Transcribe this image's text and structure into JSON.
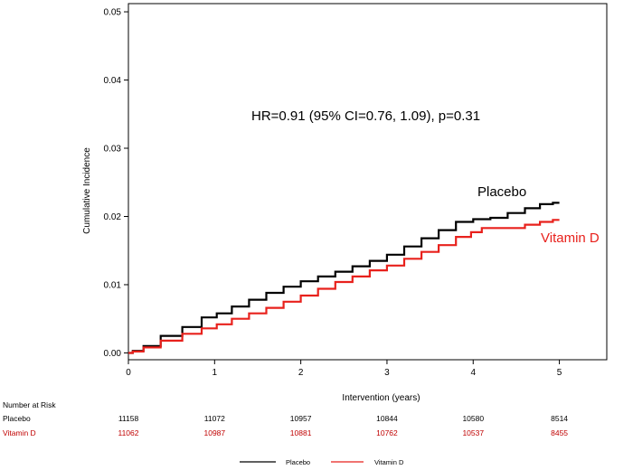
{
  "chart_data": {
    "type": "line",
    "title": "",
    "xlabel": "Intervention (years)",
    "ylabel": "Cumulative Incidence",
    "xlim": [
      0,
      5.55
    ],
    "ylim": [
      -0.001,
      0.0512
    ],
    "x_ticks": [
      0,
      1,
      2,
      3,
      4,
      5
    ],
    "x_tick_labels": [
      "0",
      "1",
      "2",
      "3",
      "4",
      "5"
    ],
    "y_ticks": [
      0,
      0.01,
      0.02,
      0.03,
      0.04,
      0.05
    ],
    "y_tick_labels": [
      "0.00",
      "0.01",
      "0.02",
      "0.03",
      "0.04",
      "0.05"
    ],
    "annotation": "HR=0.91 (95% CI=0.76, 1.09), p=0.31",
    "series": [
      {
        "name": "Placebo",
        "label": "Placebo",
        "color": "#000000",
        "x": [
          0,
          0.1,
          0.25,
          0.5,
          0.75,
          0.95,
          1.1,
          1.3,
          1.5,
          1.7,
          1.9,
          2.1,
          2.3,
          2.5,
          2.7,
          2.9,
          3.1,
          3.3,
          3.5,
          3.7,
          3.9,
          4.1,
          4.3,
          4.5,
          4.7,
          4.85,
          5.0
        ],
        "values": [
          0,
          0.0003,
          0.001,
          0.0025,
          0.0038,
          0.0052,
          0.0058,
          0.0068,
          0.0078,
          0.0088,
          0.0097,
          0.0105,
          0.0112,
          0.0119,
          0.0127,
          0.0135,
          0.0144,
          0.0156,
          0.0168,
          0.018,
          0.0192,
          0.0196,
          0.0198,
          0.0205,
          0.0212,
          0.0218,
          0.022
        ]
      },
      {
        "name": "Vitamin D",
        "label": "Vitamin D",
        "color": "#e8211c",
        "x": [
          0,
          0.1,
          0.25,
          0.5,
          0.75,
          0.95,
          1.1,
          1.3,
          1.5,
          1.7,
          1.9,
          2.1,
          2.3,
          2.5,
          2.7,
          2.9,
          3.1,
          3.3,
          3.5,
          3.7,
          3.9,
          4.05,
          4.15,
          4.3,
          4.5,
          4.7,
          4.85,
          5.0
        ],
        "values": [
          0,
          0.0002,
          0.0008,
          0.0018,
          0.0028,
          0.0036,
          0.0042,
          0.005,
          0.0058,
          0.0066,
          0.0075,
          0.0084,
          0.0094,
          0.0104,
          0.0112,
          0.0121,
          0.0128,
          0.0138,
          0.0148,
          0.0158,
          0.017,
          0.0177,
          0.0183,
          0.0183,
          0.0183,
          0.0188,
          0.0192,
          0.0195
        ]
      }
    ],
    "number_at_risk": {
      "title": "Number at Risk",
      "rows": [
        {
          "name": "Placebo",
          "color": "#000000",
          "values": [
            "11158",
            "11072",
            "10957",
            "10844",
            "10580",
            "8514"
          ]
        },
        {
          "name": "Vitamin D",
          "color": "#c00000",
          "values": [
            "11062",
            "10987",
            "10881",
            "10762",
            "10537",
            "8455"
          ]
        }
      ]
    },
    "legend": [
      {
        "name": "Placebo",
        "color": "#000000"
      },
      {
        "name": "Vitamin D",
        "color": "#e8211c"
      }
    ]
  }
}
